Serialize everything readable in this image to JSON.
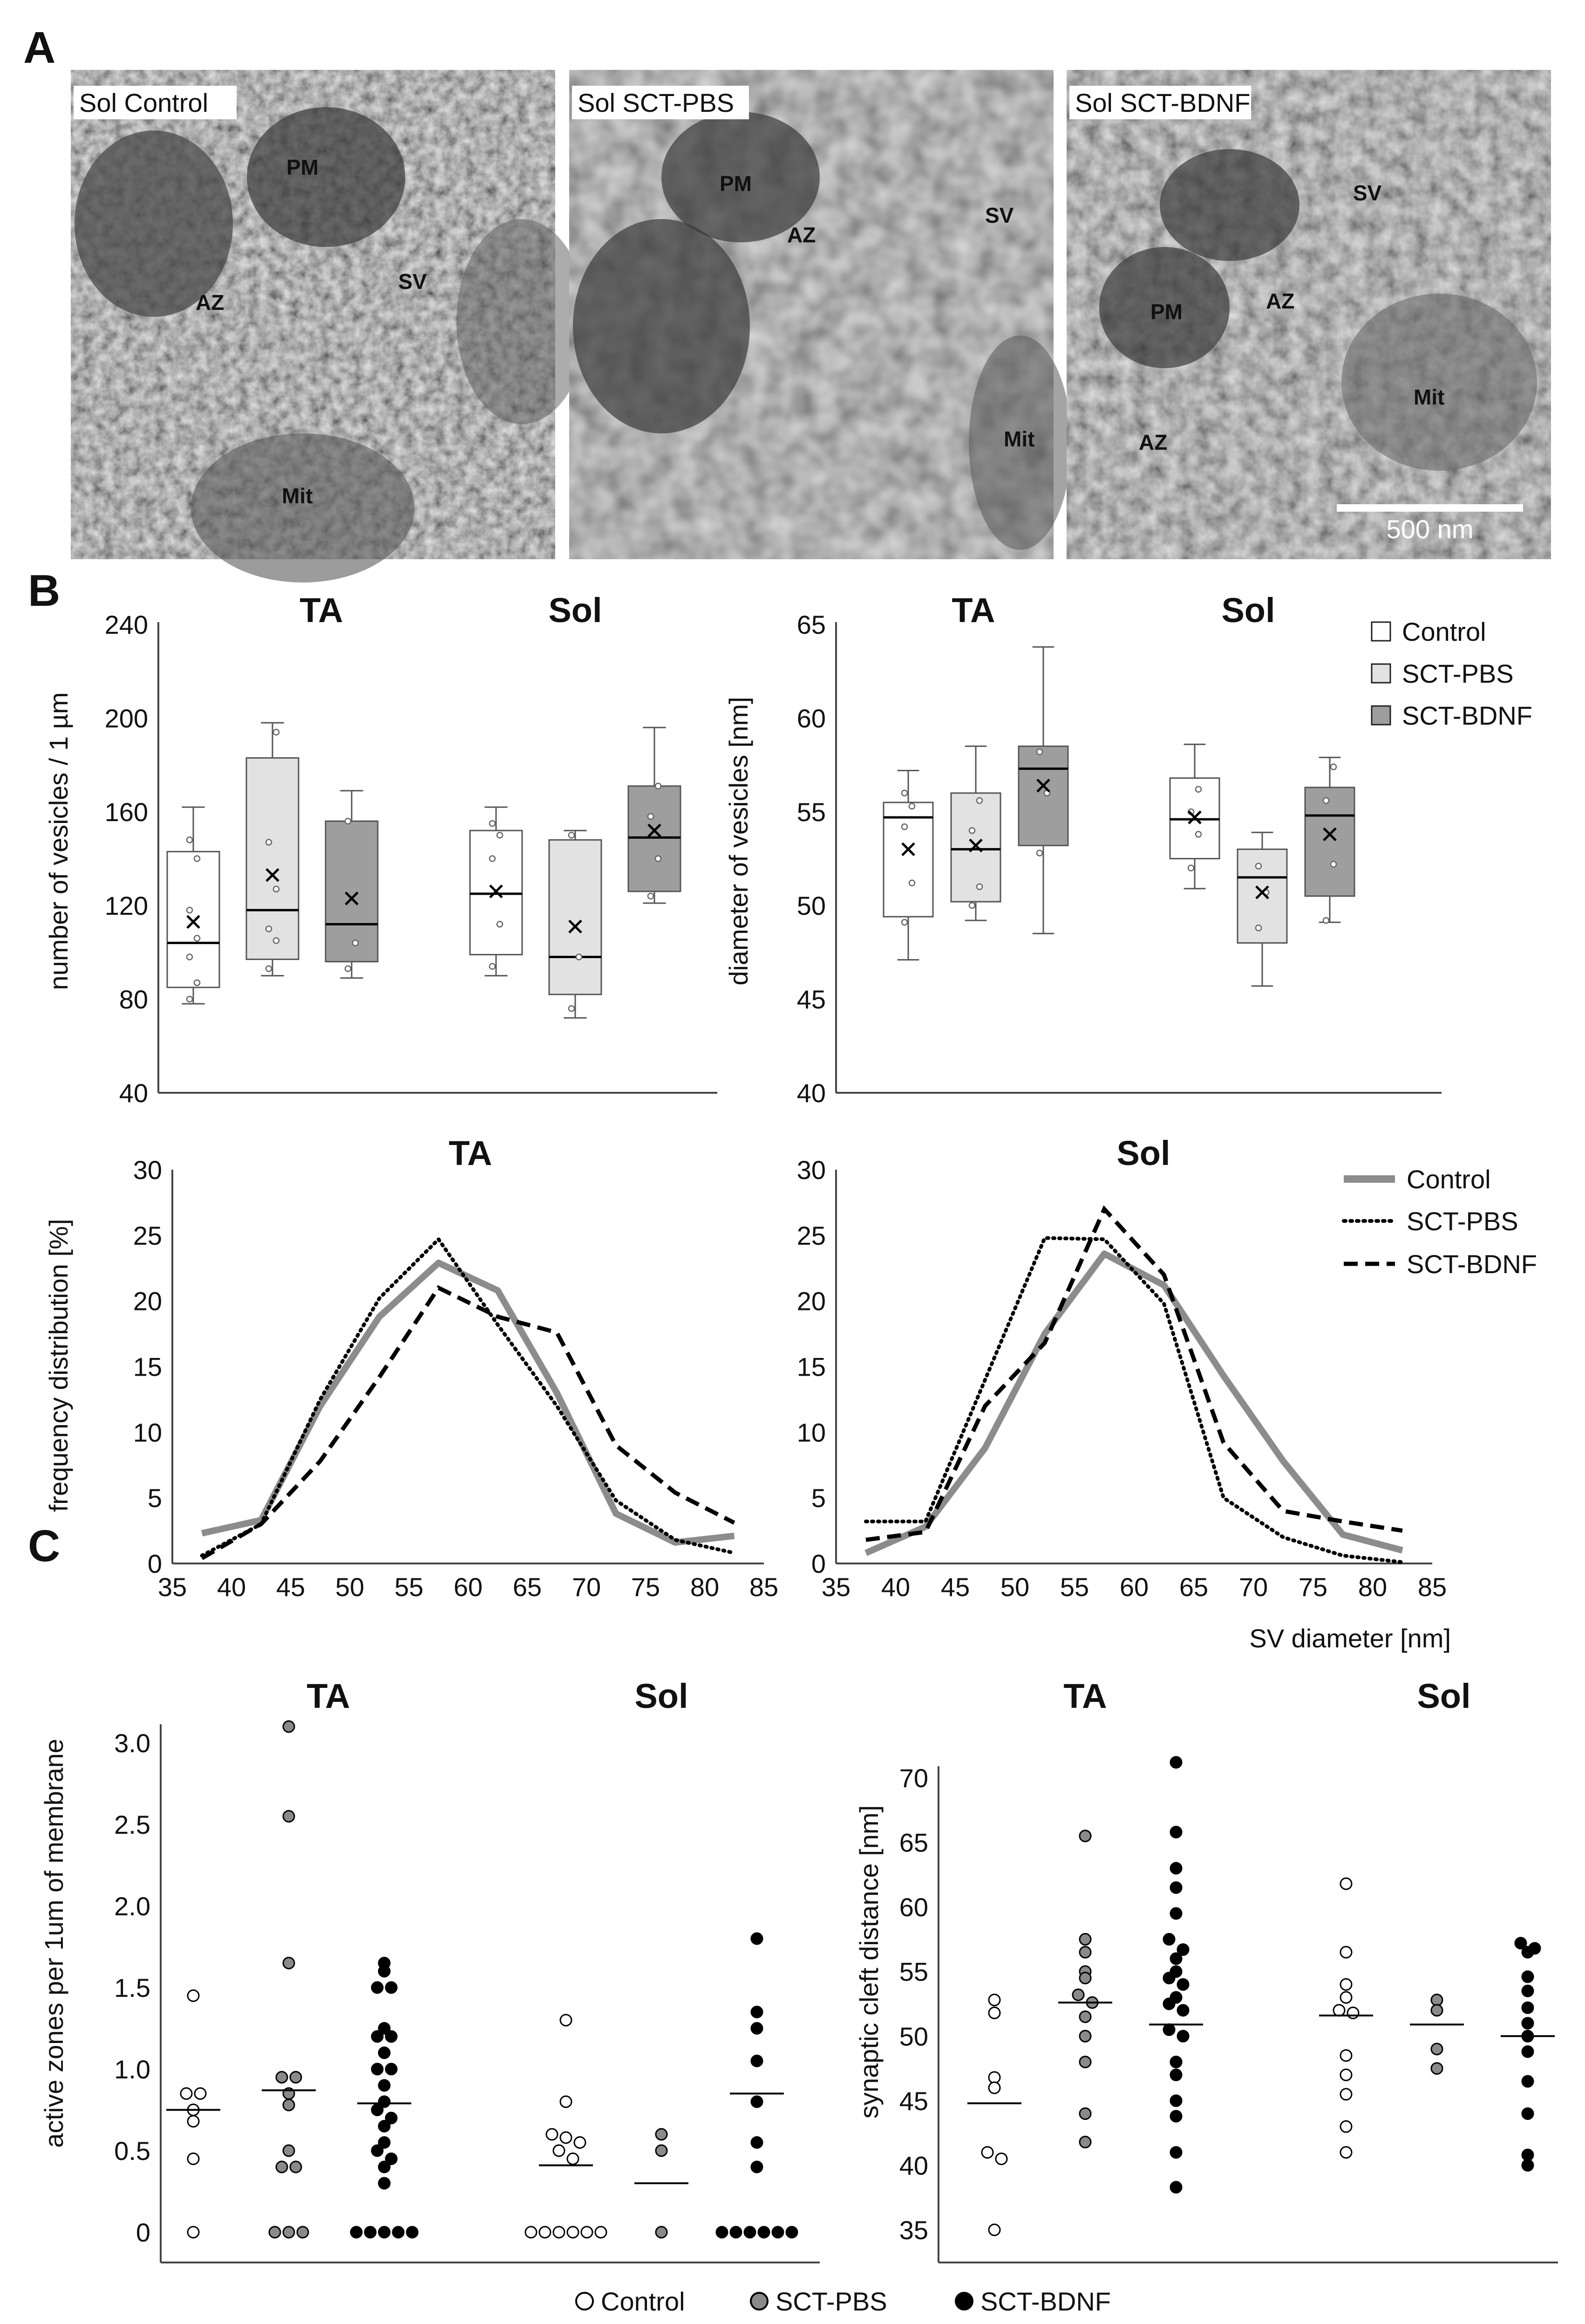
{
  "panel_letters": [
    "A",
    "B",
    "C"
  ],
  "panel_a": {
    "images": [
      {
        "label": "Sol Control",
        "tags": [
          "PM",
          "AZ",
          "SV",
          "Mit"
        ]
      },
      {
        "label": "Sol SCT-PBS",
        "tags": [
          "PM",
          "AZ",
          "SV",
          "Mit"
        ]
      },
      {
        "label": "Sol SCT-BDNF",
        "tags": [
          "SV",
          "PM",
          "AZ",
          "Mit",
          "AZ"
        ]
      }
    ],
    "scale_bar": "500 nm"
  },
  "colors": {
    "control_fill": "#ffffff",
    "pbs_fill": "#e2e2e2",
    "bdnf_fill": "#9e9e9e",
    "control_line": "#8c8c8c",
    "pbs_dot": "#8a8a8a",
    "bdnf_dot": "#000000"
  },
  "chart_data": [
    {
      "id": "b1",
      "type": "box",
      "ylabel": "number of vesicles / 1 µm",
      "ylim": [
        40,
        240
      ],
      "yticks": [
        40,
        80,
        120,
        160,
        200,
        240
      ],
      "groups": [
        "TA",
        "Sol"
      ],
      "series": [
        "Control",
        "SCT-PBS",
        "SCT-BDNF"
      ],
      "legend": [
        "Control",
        "SCT-PBS",
        "SCT-BDNF"
      ],
      "boxes": [
        {
          "group": "TA",
          "series": "Control",
          "min": 78,
          "q1": 85,
          "median": 104,
          "mean": 113,
          "q3": 143,
          "max": 162,
          "points": [
            80,
            87,
            98,
            106,
            118,
            140,
            148
          ]
        },
        {
          "group": "TA",
          "series": "SCT-PBS",
          "min": 90,
          "q1": 97,
          "median": 118,
          "mean": 133,
          "q3": 183,
          "max": 198,
          "points": [
            93,
            105,
            110,
            127,
            147,
            194
          ]
        },
        {
          "group": "TA",
          "series": "SCT-BDNF",
          "min": 89,
          "q1": 96,
          "median": 112,
          "mean": 123,
          "q3": 156,
          "max": 169,
          "points": [
            93,
            104,
            156
          ]
        },
        {
          "group": "Sol",
          "series": "Control",
          "min": 90,
          "q1": 99,
          "median": 125,
          "mean": 126,
          "q3": 152,
          "max": 162,
          "points": [
            94,
            112,
            140,
            150,
            155
          ]
        },
        {
          "group": "Sol",
          "series": "SCT-PBS",
          "min": 72,
          "q1": 82,
          "median": 98,
          "mean": 111,
          "q3": 148,
          "max": 152,
          "points": [
            76,
            98,
            150
          ]
        },
        {
          "group": "Sol",
          "series": "SCT-BDNF",
          "min": 121,
          "q1": 126,
          "median": 149,
          "mean": 152,
          "q3": 171,
          "max": 196,
          "points": [
            124,
            140,
            158,
            171
          ]
        }
      ]
    },
    {
      "id": "b2",
      "type": "box",
      "ylabel": "diameter of vesicles [nm]",
      "ylim": [
        40,
        65
      ],
      "yticks": [
        40,
        45,
        50,
        55,
        60,
        65
      ],
      "groups": [
        "TA",
        "Sol"
      ],
      "series": [
        "Control",
        "SCT-PBS",
        "SCT-BDNF"
      ],
      "boxes": [
        {
          "group": "TA",
          "series": "Control",
          "min": 47.1,
          "q1": 49.4,
          "median": 54.7,
          "mean": 53.0,
          "q3": 55.5,
          "max": 57.2,
          "points": [
            49.1,
            51.2,
            54.2,
            55.3,
            56.0
          ]
        },
        {
          "group": "TA",
          "series": "SCT-PBS",
          "min": 49.2,
          "q1": 50.2,
          "median": 53.0,
          "mean": 53.2,
          "q3": 56.0,
          "max": 58.5,
          "points": [
            50.0,
            51.0,
            54.0,
            55.6
          ]
        },
        {
          "group": "TA",
          "series": "SCT-BDNF",
          "min": 48.5,
          "q1": 53.2,
          "median": 57.3,
          "mean": 56.4,
          "q3": 58.5,
          "max": 63.8,
          "points": [
            52.8,
            56.0,
            58.2
          ]
        },
        {
          "group": "Sol",
          "series": "Control",
          "min": 50.9,
          "q1": 52.5,
          "median": 54.6,
          "mean": 54.7,
          "q3": 56.8,
          "max": 58.6,
          "points": [
            52.0,
            53.8,
            55.0,
            56.2
          ]
        },
        {
          "group": "Sol",
          "series": "SCT-PBS",
          "min": 45.7,
          "q1": 48.0,
          "median": 51.5,
          "mean": 50.7,
          "q3": 53.0,
          "max": 53.9,
          "points": [
            48.8,
            50.7,
            52.1
          ]
        },
        {
          "group": "Sol",
          "series": "SCT-BDNF",
          "min": 49.1,
          "q1": 50.5,
          "median": 54.8,
          "mean": 53.8,
          "q3": 56.3,
          "max": 57.9,
          "points": [
            49.2,
            52.2,
            55.6,
            57.4
          ]
        }
      ]
    },
    {
      "id": "b3",
      "type": "line",
      "title": "TA",
      "ylabel": "frequency distribution [%]",
      "xlim": [
        35,
        85
      ],
      "ylim": [
        0,
        30
      ],
      "xticks": [
        35,
        40,
        45,
        50,
        55,
        60,
        65,
        70,
        75,
        80,
        85
      ],
      "yticks": [
        0,
        5,
        10,
        15,
        20,
        25,
        30
      ],
      "x": [
        37.5,
        42.5,
        47.5,
        52.5,
        57.5,
        62.5,
        67.5,
        72.5,
        77.5,
        82.5
      ],
      "series": [
        {
          "name": "Control",
          "values": [
            2.3,
            3.3,
            12.0,
            18.8,
            22.9,
            20.8,
            13.0,
            3.8,
            1.6,
            2.1
          ]
        },
        {
          "name": "SCT-PBS",
          "values": [
            0.6,
            3.0,
            12.5,
            20.2,
            24.7,
            18.2,
            12.0,
            4.8,
            1.8,
            0.8
          ]
        },
        {
          "name": "SCT-BDNF",
          "values": [
            0.4,
            3.0,
            7.8,
            14.2,
            21.0,
            18.8,
            17.6,
            9.0,
            5.4,
            3.1
          ]
        }
      ]
    },
    {
      "id": "b4",
      "type": "line",
      "title": "Sol",
      "xlabel": "SV diameter [nm]",
      "xlim": [
        35,
        85
      ],
      "ylim": [
        0,
        30
      ],
      "xticks": [
        35,
        40,
        45,
        50,
        55,
        60,
        65,
        70,
        75,
        80,
        85
      ],
      "yticks": [
        0,
        5,
        10,
        15,
        20,
        25,
        30
      ],
      "x": [
        37.5,
        42.5,
        47.5,
        52.5,
        57.5,
        62.5,
        67.5,
        72.5,
        77.5,
        82.5
      ],
      "legend": [
        "Control",
        "SCT-PBS",
        "SCT-BDNF"
      ],
      "series": [
        {
          "name": "Control",
          "values": [
            0.8,
            2.8,
            8.8,
            17.5,
            23.6,
            21.2,
            14.3,
            7.8,
            2.2,
            1.0
          ]
        },
        {
          "name": "SCT-PBS",
          "values": [
            3.2,
            3.2,
            14.0,
            24.8,
            24.7,
            19.8,
            5.0,
            2.0,
            0.6,
            0.1
          ]
        },
        {
          "name": "SCT-BDNF",
          "values": [
            1.8,
            2.4,
            12.0,
            16.8,
            27.0,
            22.0,
            9.2,
            4.0,
            3.2,
            2.5
          ]
        }
      ]
    },
    {
      "id": "c1",
      "type": "scatter",
      "ylabel": "active zones per 1um of membrane",
      "ylim": [
        0,
        3.0
      ],
      "yticks": [
        "0",
        "0.5",
        "1.0",
        "1.5",
        "2.0",
        "2.5",
        "3.0"
      ],
      "groups": [
        "TA",
        "Sol"
      ],
      "series": [
        {
          "group": "TA",
          "name": "Control",
          "median": 0.75,
          "points": [
            1.45,
            0.85,
            0.85,
            0.75,
            0.68,
            0.45,
            0.0
          ]
        },
        {
          "group": "TA",
          "name": "SCT-PBS",
          "median": 0.87,
          "points": [
            3.1,
            2.55,
            1.65,
            0.95,
            0.95,
            0.85,
            0.78,
            0.5,
            0.4,
            0.4,
            0.0,
            0.0,
            0.0
          ]
        },
        {
          "group": "TA",
          "name": "SCT-BDNF",
          "median": 0.79,
          "points": [
            1.65,
            1.6,
            1.5,
            1.5,
            1.25,
            1.2,
            1.2,
            1.1,
            1.0,
            1.0,
            0.9,
            0.8,
            0.75,
            0.7,
            0.65,
            0.55,
            0.5,
            0.45,
            0.4,
            0.3,
            0.0,
            0.0,
            0.0,
            0.0,
            0.0
          ]
        },
        {
          "group": "Sol",
          "name": "Control",
          "median": 0.41,
          "points": [
            1.3,
            0.8,
            0.6,
            0.58,
            0.55,
            0.5,
            0.45,
            0.0,
            0.0,
            0.0,
            0.0,
            0.0,
            0.0
          ]
        },
        {
          "group": "Sol",
          "name": "SCT-PBS",
          "median": 0.3,
          "points": [
            0.6,
            0.5,
            0.0
          ]
        },
        {
          "group": "Sol",
          "name": "SCT-BDNF",
          "median": 0.85,
          "points": [
            1.8,
            1.35,
            1.25,
            1.05,
            0.8,
            0.55,
            0.4,
            0.0,
            0.0,
            0.0,
            0.0,
            0.0,
            0.0
          ]
        }
      ]
    },
    {
      "id": "c2",
      "type": "scatter",
      "ylabel": "synaptic cleft distance [nm]",
      "ylim": [
        35,
        70
      ],
      "yticks": [
        35,
        40,
        45,
        50,
        55,
        60,
        65,
        70
      ],
      "groups": [
        "TA",
        "Sol"
      ],
      "series": [
        {
          "group": "TA",
          "name": "Control",
          "median": 44.8,
          "points": [
            52.8,
            51.8,
            46.8,
            46.0,
            41.0,
            40.5,
            35.0
          ]
        },
        {
          "group": "TA",
          "name": "SCT-PBS",
          "median": 52.6,
          "points": [
            65.5,
            57.5,
            56.5,
            55.0,
            54.5,
            53.2,
            52.6,
            51.5,
            50.0,
            48.0,
            44.0,
            41.8
          ]
        },
        {
          "group": "TA",
          "name": "SCT-BDNF",
          "median": 50.9,
          "points": [
            71.2,
            65.8,
            63.0,
            61.5,
            59.5,
            57.5,
            56.7,
            56.0,
            55.0,
            54.5,
            54.0,
            53.0,
            52.5,
            52.0,
            50.5,
            50.0,
            48.0,
            47.0,
            45.0,
            43.8,
            41.0,
            38.3
          ]
        },
        {
          "group": "Sol",
          "name": "Control",
          "median": 51.6,
          "points": [
            61.8,
            56.5,
            54.0,
            53.0,
            52.0,
            51.8,
            48.5,
            47.0,
            45.5,
            43.0,
            41.0
          ]
        },
        {
          "group": "Sol",
          "name": "SCT-PBS",
          "median": 50.9,
          "points": [
            52.8,
            52.0,
            49.0,
            47.5
          ]
        },
        {
          "group": "Sol",
          "name": "SCT-BDNF",
          "median": 50.0,
          "points": [
            57.2,
            56.8,
            56.5,
            54.6,
            53.5,
            52.2,
            51.0,
            50.0,
            48.8,
            46.5,
            44.0,
            40.8,
            40.0
          ]
        }
      ]
    }
  ],
  "panel_c_legend": [
    "Control",
    "SCT-PBS",
    "SCT-BDNF"
  ]
}
